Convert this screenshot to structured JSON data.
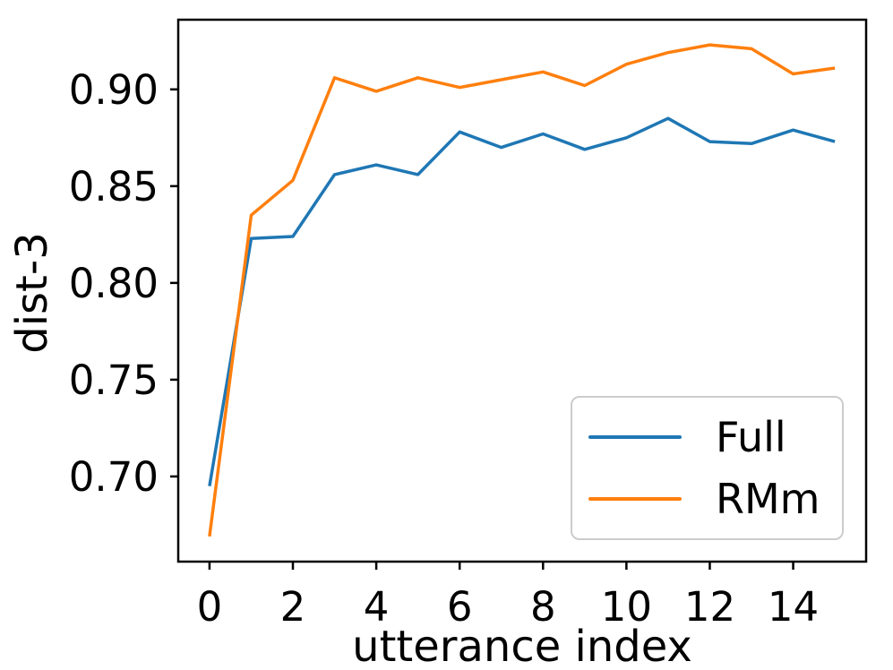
{
  "chart_data": {
    "type": "line",
    "title": "",
    "xlabel": "utterance index",
    "ylabel": "dist-3",
    "x": [
      0,
      1,
      2,
      3,
      4,
      5,
      6,
      7,
      8,
      9,
      10,
      11,
      12,
      13,
      14,
      15
    ],
    "series": [
      {
        "name": "Full",
        "color": "#1f77b4",
        "values": [
          0.695,
          0.823,
          0.824,
          0.856,
          0.861,
          0.856,
          0.878,
          0.87,
          0.877,
          0.869,
          0.875,
          0.885,
          0.873,
          0.872,
          0.879,
          0.873
        ]
      },
      {
        "name": "RMm",
        "color": "#ff7f0e",
        "values": [
          0.669,
          0.835,
          0.853,
          0.906,
          0.899,
          0.906,
          0.901,
          0.905,
          0.909,
          0.902,
          0.913,
          0.919,
          0.923,
          0.921,
          0.908,
          0.911
        ]
      }
    ],
    "xlim": [
      -0.75,
      15.75
    ],
    "ylim": [
      0.656,
      0.936
    ],
    "x_ticks": [
      0,
      2,
      4,
      6,
      8,
      10,
      12,
      14
    ],
    "y_ticks": [
      "0.70",
      "0.75",
      "0.80",
      "0.85",
      "0.90"
    ],
    "y_tick_values": [
      0.7,
      0.75,
      0.8,
      0.85,
      0.9
    ],
    "grid": false,
    "legend_position": "lower right",
    "axis_color": "#000000",
    "legend_border_color": "#cccccc"
  }
}
